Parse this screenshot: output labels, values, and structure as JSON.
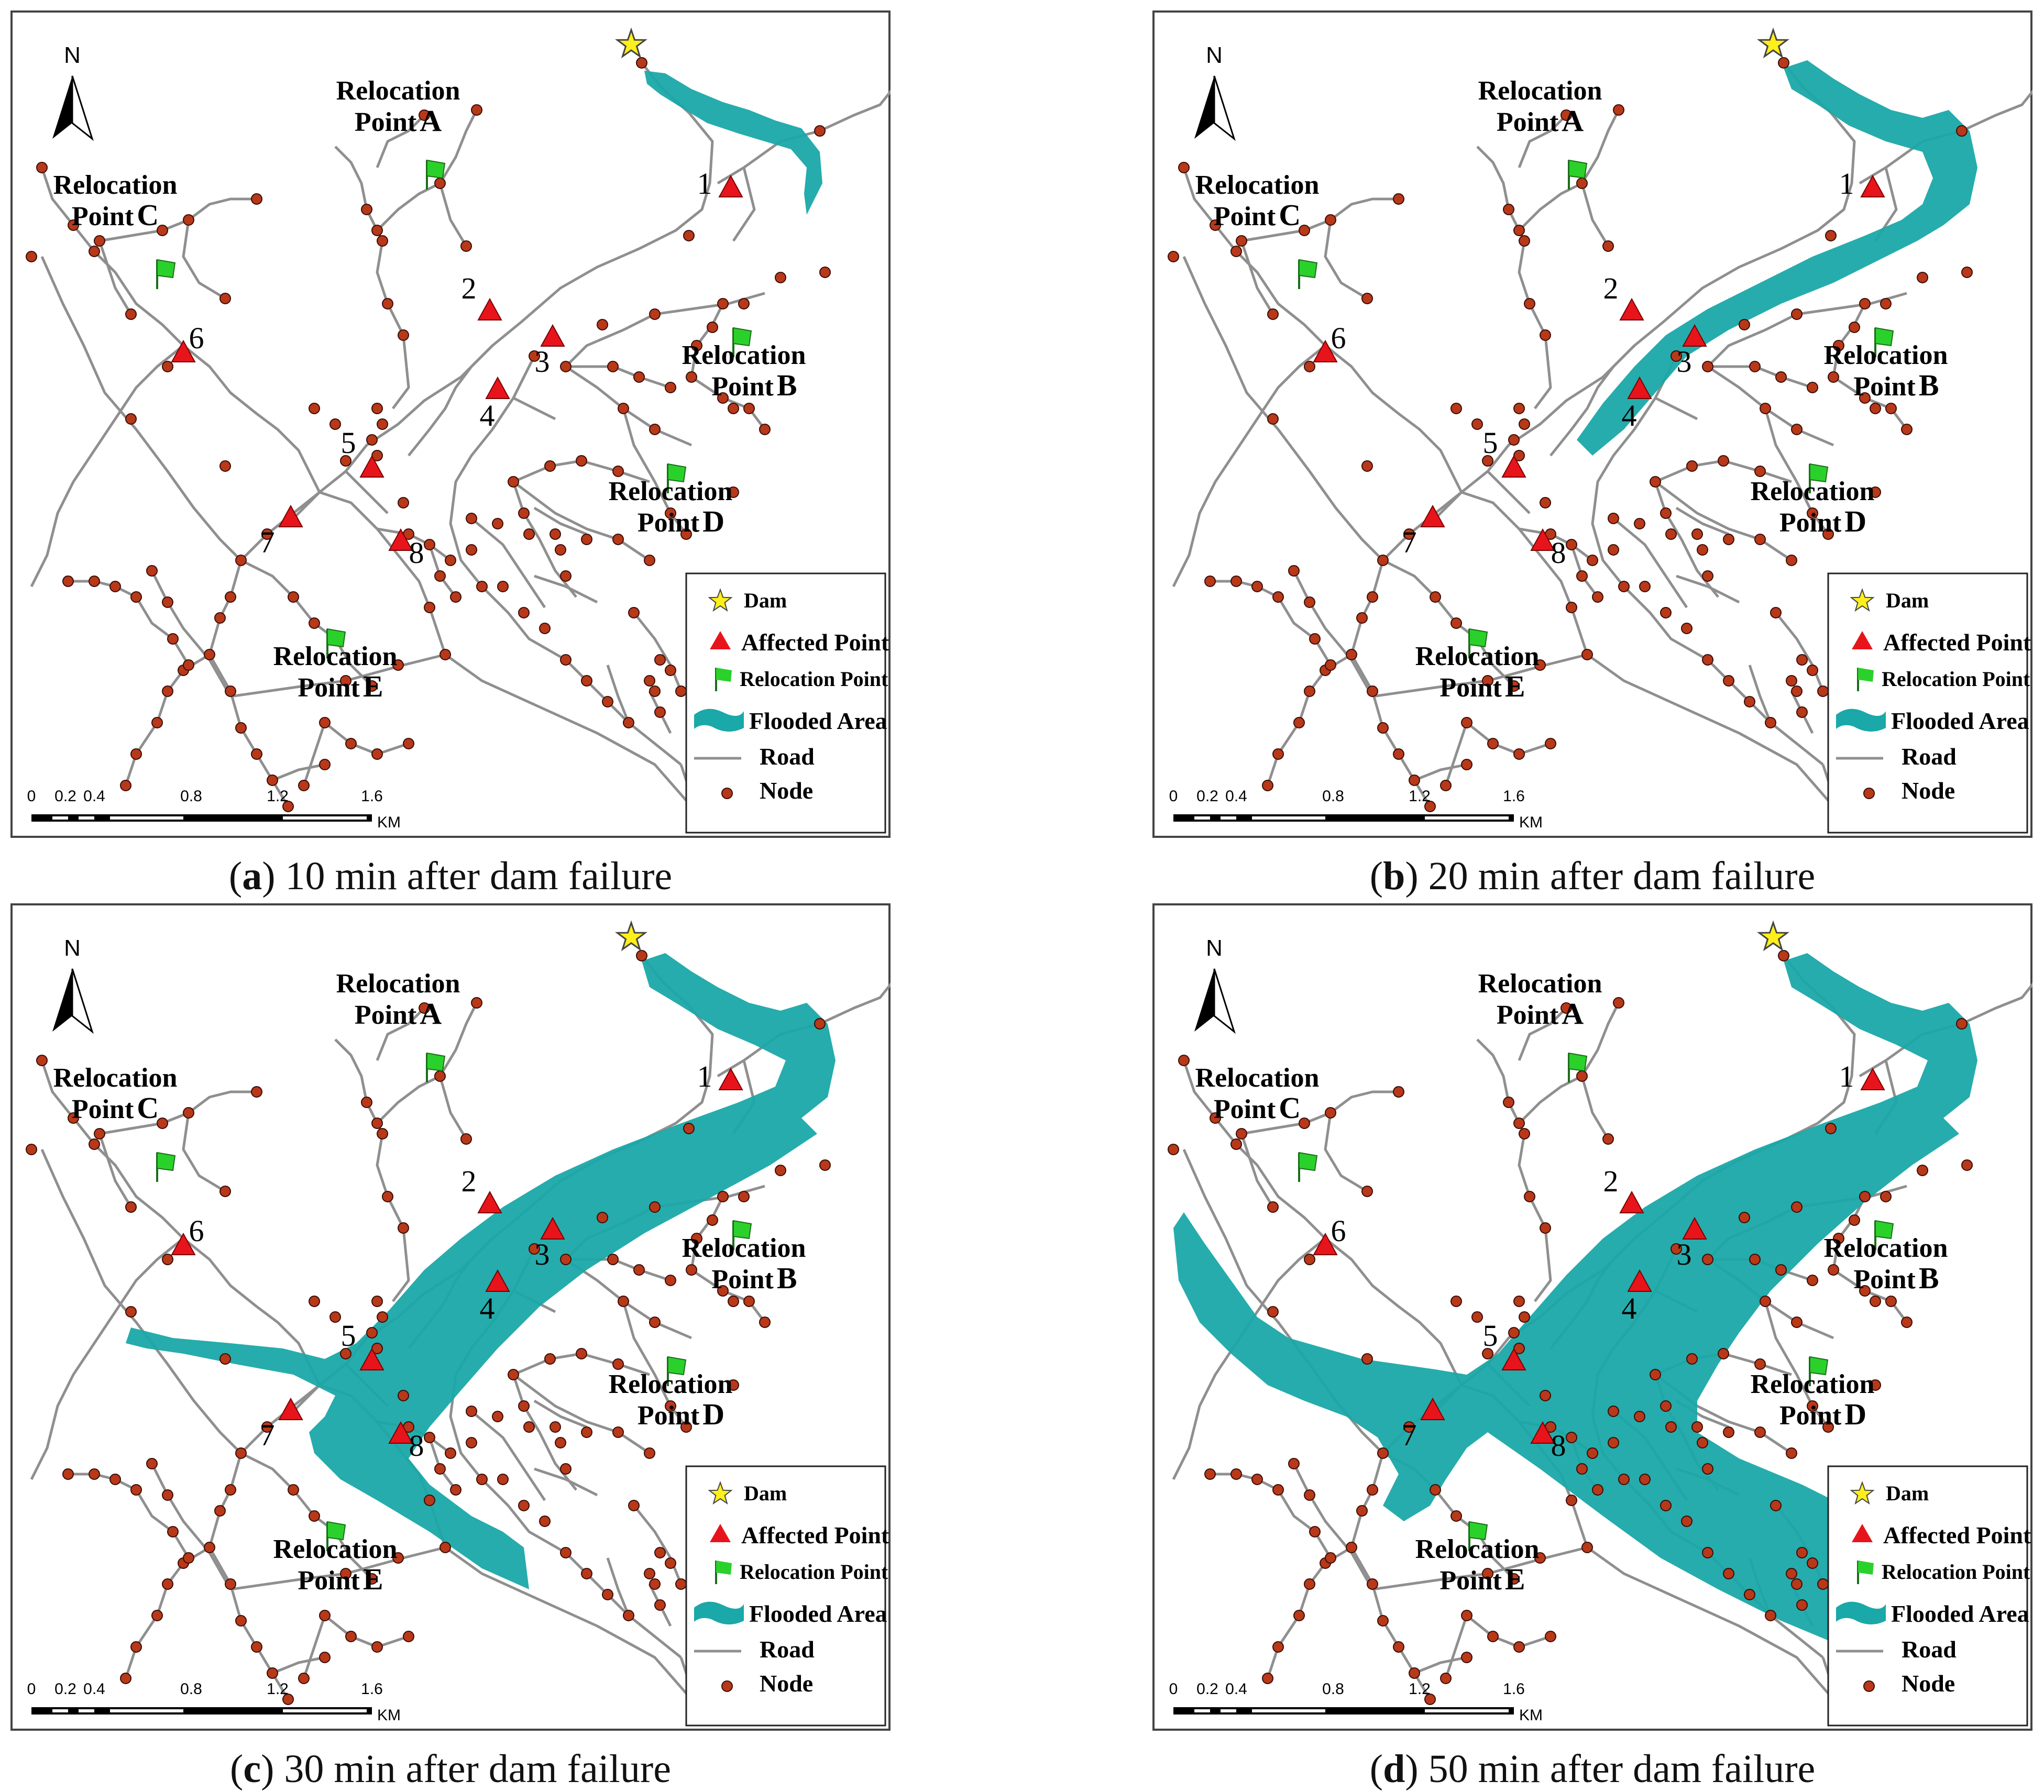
{
  "panels": [
    {
      "letter": "a",
      "caption": "10 min after dam failure",
      "flood_stage": 1
    },
    {
      "letter": "b",
      "caption": "20 min after dam failure",
      "flood_stage": 2
    },
    {
      "letter": "c",
      "caption": "30 min after dam failure",
      "flood_stage": 3
    },
    {
      "letter": "d",
      "caption": "50 min after dam failure",
      "flood_stage": 4
    }
  ],
  "map": {
    "north": "N",
    "relocation_points": [
      {
        "id": "A",
        "line1": "Relocation",
        "line2": "Point",
        "letter": "A"
      },
      {
        "id": "B",
        "line1": "Relocation",
        "line2": "Point",
        "letter": "B"
      },
      {
        "id": "C",
        "line1": "Relocation",
        "line2": "Point",
        "letter": "C"
      },
      {
        "id": "D",
        "line1": "Relocation",
        "line2": "Point",
        "letter": "D"
      },
      {
        "id": "E",
        "line1": "Relocation",
        "line2": "Point",
        "letter": "E"
      }
    ],
    "affected_points": [
      "1",
      "2",
      "3",
      "4",
      "5",
      "6",
      "7",
      "8"
    ],
    "legend": {
      "dam": "Dam",
      "affected": "Affected Point",
      "relocation": "Relocation  Point",
      "flooded": "Flooded Area",
      "road": "Road",
      "node": "Node"
    },
    "scale": {
      "ticks": [
        "0",
        "0.2",
        "0.4",
        "0.8",
        "1.2",
        "1.6"
      ],
      "unit": "KM"
    }
  },
  "colors": {
    "flood": "#1aa8a8",
    "affected": "#e8141b",
    "flag": "#2bd12b",
    "node_fill": "#b8381a",
    "road": "#8f8f8f",
    "dam_star": "#ffef1a"
  }
}
